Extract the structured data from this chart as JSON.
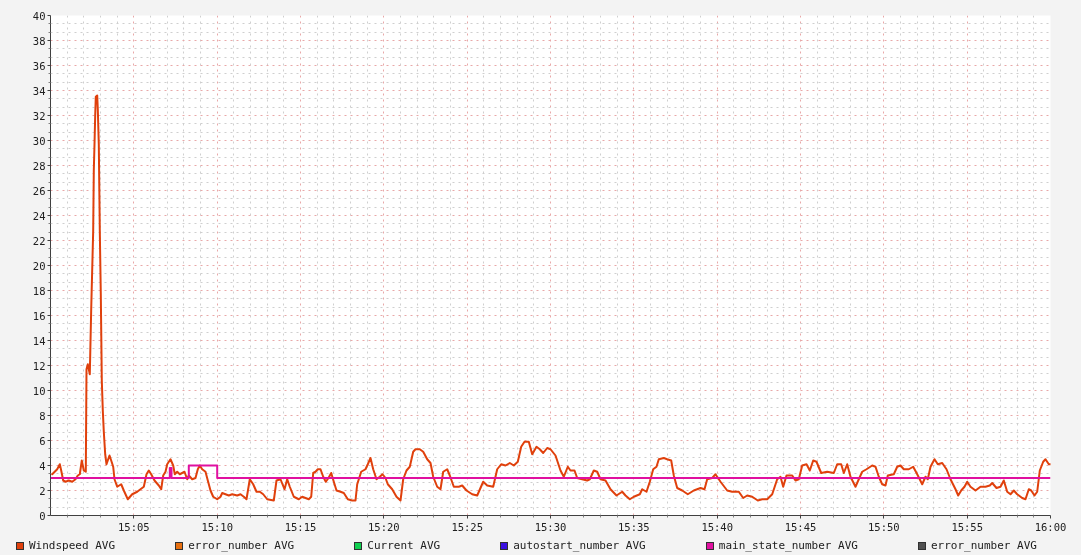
{
  "chart_data": {
    "type": "line",
    "xlim": [
      15.0,
      16.0
    ],
    "ylim": [
      0,
      40
    ],
    "xticks": [
      {
        "value": 15.0833,
        "label": "15:05"
      },
      {
        "value": 15.1667,
        "label": "15:10"
      },
      {
        "value": 15.25,
        "label": "15:15"
      },
      {
        "value": 15.3333,
        "label": "15:20"
      },
      {
        "value": 15.4167,
        "label": "15:25"
      },
      {
        "value": 15.5,
        "label": "15:30"
      },
      {
        "value": 15.5833,
        "label": "15:35"
      },
      {
        "value": 15.6667,
        "label": "15:40"
      },
      {
        "value": 15.75,
        "label": "15:45"
      },
      {
        "value": 15.8333,
        "label": "15:50"
      },
      {
        "value": 15.9167,
        "label": "15:55"
      },
      {
        "value": 16.0,
        "label": "16:00"
      }
    ],
    "yticks": [
      0,
      2,
      4,
      6,
      8,
      10,
      12,
      14,
      16,
      18,
      20,
      22,
      24,
      26,
      28,
      30,
      32,
      34,
      36,
      38,
      40
    ],
    "grid": true,
    "legend": "bottom",
    "series": [
      {
        "name": "Windspeed AVG",
        "color": "#e0400c",
        "x": [
          15.0017,
          15.0067,
          15.0093,
          15.0107,
          15.0127,
          15.015,
          15.0183,
          15.0217,
          15.025,
          15.0273,
          15.0293,
          15.0313,
          15.0333,
          15.0353,
          15.036,
          15.0373,
          15.0393,
          15.0407,
          15.0427,
          15.0433,
          15.044,
          15.0447,
          15.0453,
          15.0467,
          15.0473,
          15.0483,
          15.0493,
          15.0503,
          15.0513,
          15.0523,
          15.0533,
          15.0547,
          15.056,
          15.0577,
          15.059,
          15.0607,
          15.0627,
          15.064,
          15.0667,
          15.0707,
          15.0733,
          15.0773,
          15.0817,
          15.0867,
          15.09,
          15.0933,
          15.096,
          15.0983,
          15.1007,
          15.104,
          15.1083,
          15.1107,
          15.1127,
          15.115,
          15.1167,
          15.12,
          15.1227,
          15.1243,
          15.1267,
          15.1293,
          15.134,
          15.1367,
          15.1383,
          15.1417,
          15.145,
          15.1473,
          15.1493,
          15.1517,
          15.155,
          15.1573,
          15.16,
          15.1627,
          15.1667,
          15.17,
          15.1717,
          15.175,
          15.1783,
          15.1817,
          15.1867,
          15.19,
          15.1933,
          15.196,
          15.1993,
          15.2027,
          15.206,
          15.2093,
          15.2127,
          15.2167,
          15.2233,
          15.226,
          15.23,
          15.234,
          15.2367,
          15.2393,
          15.2433,
          15.2483,
          15.2517,
          15.2583,
          15.2607,
          15.2627,
          15.265,
          15.2673,
          15.27,
          15.2727,
          15.2753,
          15.278,
          15.2807,
          15.2833,
          15.286,
          15.29,
          15.2933,
          15.2973,
          15.3017,
          15.305,
          15.3067,
          15.3107,
          15.315,
          15.3173,
          15.32,
          15.3227,
          15.326,
          15.3293,
          15.332,
          15.335,
          15.3373,
          15.3417,
          15.346,
          15.35,
          15.3527,
          15.356,
          15.3593,
          15.3627,
          15.365,
          15.3693,
          15.3727,
          15.3767,
          15.38,
          15.3827,
          15.3867,
          15.39,
          15.3927,
          15.3967,
          15.3993,
          15.4033,
          15.4083,
          15.4117,
          15.416,
          15.4217,
          15.4267,
          15.4327,
          15.4367,
          15.4427,
          15.4467,
          15.4507,
          15.455,
          15.4593,
          15.4633,
          15.4673,
          15.4707,
          15.474,
          15.4783,
          15.4817,
          15.486,
          15.4893,
          15.4927,
          15.4967,
          15.5,
          15.505,
          15.51,
          15.5133,
          15.5173,
          15.52,
          15.524,
          15.5267,
          15.5317,
          15.5367,
          15.5393,
          15.5433,
          15.5467,
          15.55,
          15.555,
          15.56,
          15.566,
          15.5717,
          15.575,
          15.5793,
          15.5833,
          15.5893,
          15.5917,
          15.596,
          15.5993,
          15.6027,
          15.606,
          15.6083,
          15.6133,
          15.6167,
          15.6207,
          15.6233,
          15.6267,
          15.6317,
          15.6373,
          15.6433,
          15.65,
          15.654,
          15.6567,
          15.6617,
          15.665,
          15.67,
          15.6767,
          15.6817,
          15.6883,
          15.6927,
          15.6967,
          15.7017,
          15.7073,
          15.7117,
          15.7167,
          15.7217,
          15.7267,
          15.73,
          15.7327,
          15.736,
          15.7417,
          15.745,
          15.7483,
          15.7517,
          15.756,
          15.7593,
          15.7627,
          15.766,
          15.7707,
          15.7767,
          15.7833,
          15.7867,
          15.7907,
          15.7933,
          15.7967,
          15.8,
          15.805,
          15.8083,
          15.8117,
          15.816,
          15.8217,
          15.825,
          15.8283,
          15.8317,
          15.835,
          15.8373,
          15.8433,
          15.8467,
          15.85,
          15.8533,
          15.8583,
          15.8627,
          15.8667,
          15.8717,
          15.875,
          15.8773,
          15.88,
          15.884,
          15.8873,
          15.8917,
          15.896,
          15.9,
          15.905,
          15.9077,
          15.9107,
          15.914,
          15.9167,
          15.92,
          15.925,
          15.93,
          15.935,
          15.9393,
          15.9417,
          15.946,
          15.95,
          15.9533,
          15.9567,
          15.96,
          15.9633,
          15.9667,
          15.9717,
          15.975,
          15.9783,
          15.9807,
          15.984,
          15.9867,
          15.9893,
          15.9927,
          15.995,
          15.9983,
          16.0
        ],
        "values": [
          3.3,
          3.7,
          4.1,
          3.6,
          2.8,
          2.7,
          2.8,
          2.7,
          2.9,
          3.2,
          3.3,
          4.4,
          3.6,
          3.5,
          11.7,
          12.1,
          11.3,
          16.5,
          22.8,
          27.6,
          29.7,
          32,
          33.5,
          33.6,
          32.5,
          29.7,
          22.8,
          17.7,
          10.8,
          8.4,
          6.7,
          4.9,
          4.1,
          4.5,
          4.8,
          4.4,
          3.9,
          2.9,
          2.3,
          2.5,
          2.0,
          1.3,
          1.7,
          1.9,
          2.1,
          2.3,
          3.3,
          3.6,
          3.3,
          2.8,
          2.4,
          2.1,
          3.2,
          3.5,
          4.1,
          4.5,
          4.0,
          3.3,
          3.5,
          3.3,
          3.5,
          2.9,
          3.2,
          2.9,
          3.0,
          3.7,
          4.0,
          3.7,
          3.5,
          2.8,
          2.0,
          1.5,
          1.3,
          1.5,
          1.8,
          1.7,
          1.6,
          1.7,
          1.6,
          1.7,
          1.5,
          1.3,
          2.9,
          2.5,
          1.9,
          1.9,
          1.7,
          1.3,
          1.2,
          2.8,
          2.9,
          2.1,
          2.9,
          2.3,
          1.5,
          1.3,
          1.5,
          1.3,
          1.5,
          3.4,
          3.5,
          3.7,
          3.7,
          3.1,
          2.7,
          3.0,
          3.4,
          2.7,
          2.0,
          1.9,
          1.8,
          1.3,
          1.2,
          1.2,
          2.5,
          3.5,
          3.7,
          4.1,
          4.6,
          3.7,
          2.9,
          3.1,
          3.3,
          3.0,
          2.5,
          2.1,
          1.5,
          1.2,
          2.9,
          3.6,
          3.9,
          5.1,
          5.3,
          5.3,
          5.1,
          4.5,
          4.2,
          3.1,
          2.3,
          2.1,
          3.5,
          3.7,
          3.2,
          2.3,
          2.3,
          2.4,
          2.0,
          1.7,
          1.6,
          2.7,
          2.4,
          2.3,
          3.7,
          4.1,
          4.0,
          4.2,
          4.0,
          4.3,
          5.5,
          5.9,
          5.9,
          4.9,
          5.5,
          5.3,
          5.0,
          5.4,
          5.3,
          4.8,
          3.6,
          3.1,
          3.9,
          3.6,
          3.6,
          3.0,
          2.9,
          2.8,
          2.9,
          3.6,
          3.5,
          2.9,
          2.8,
          2.1,
          1.6,
          1.9,
          1.6,
          1.3,
          1.5,
          1.7,
          2.1,
          1.9,
          2.7,
          3.7,
          3.9,
          4.5,
          4.6,
          4.5,
          4.4,
          3.2,
          2.2,
          2.0,
          1.7,
          2.0,
          2.2,
          2.1,
          2.9,
          3.0,
          3.3,
          2.7,
          2.0,
          1.9,
          1.9,
          1.4,
          1.6,
          1.5,
          1.2,
          1.3,
          1.3,
          1.7,
          2.9,
          3.1,
          2.3,
          3.2,
          3.2,
          2.8,
          2.9,
          4.0,
          4.1,
          3.6,
          4.4,
          4.3,
          3.4,
          3.5,
          3.4,
          4.1,
          4.1,
          3.4,
          4.1,
          3.1,
          2.3,
          2.9,
          3.5,
          3.7,
          4.0,
          3.9,
          3.1,
          2.5,
          2.4,
          3.2,
          3.3,
          3.9,
          4.0,
          3.7,
          3.7,
          3.9,
          3.3,
          2.5,
          3.1,
          2.9,
          3.9,
          4.5,
          4.1,
          4.2,
          3.7,
          2.9,
          2.1,
          1.6,
          2.0,
          2.3,
          2.7,
          2.3,
          2.0,
          2.3,
          2.3,
          2.4,
          2.6,
          2.2,
          2.3,
          2.8,
          1.9,
          1.7,
          2.0,
          1.7,
          1.4,
          1.3,
          2.1,
          2.0,
          1.6,
          1.9,
          3.6,
          4.3,
          4.5,
          4.1,
          4.1
        ]
      },
      {
        "name": "error_number AVG",
        "color": "#e87010"
      },
      {
        "name": "Current AVG",
        "color": "#10d050"
      },
      {
        "name": "autostart_number AVG",
        "color": "#3a10e0"
      },
      {
        "name": "main_state_number AVG",
        "color": "#e010a0",
        "type": "step",
        "x": [
          15.0,
          15.1193,
          15.121,
          15.1383,
          15.1667,
          16.0
        ],
        "values": [
          3,
          3.8,
          3,
          4,
          3,
          3
        ]
      },
      {
        "name": "error_number AVG",
        "color": "#505050"
      }
    ]
  }
}
